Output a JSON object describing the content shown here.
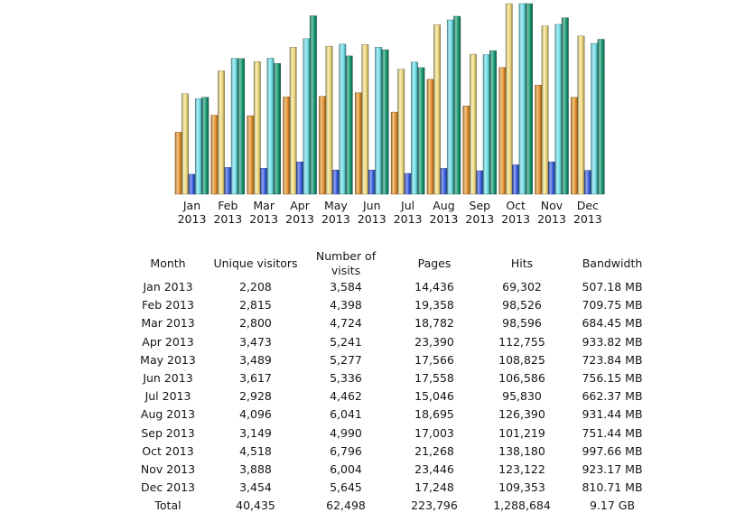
{
  "chart_data": {
    "type": "bar",
    "categories": [
      "Jan 2013",
      "Feb 2013",
      "Mar 2013",
      "Apr 2013",
      "May 2013",
      "Jun 2013",
      "Jul 2013",
      "Aug 2013",
      "Sep 2013",
      "Oct 2013",
      "Nov 2013",
      "Dec 2013"
    ],
    "series": [
      {
        "color": "#e8952e",
        "values": [
          2208,
          2815,
          2800,
          3473,
          3489,
          3617,
          2928,
          4096,
          3149,
          4518,
          3888,
          3454
        ]
      },
      {
        "color": "#f0dc80",
        "values": [
          3584,
          4398,
          4724,
          5241,
          5277,
          5336,
          4462,
          6041,
          4990,
          6796,
          6004,
          5645
        ]
      },
      {
        "color": "#3a5ee0",
        "values": [
          14436,
          19358,
          18782,
          23390,
          17566,
          17558,
          15046,
          18695,
          17003,
          21268,
          23446,
          17248
        ]
      },
      {
        "color": "#70e0e8",
        "values": [
          69302,
          98526,
          98596,
          112755,
          108825,
          106586,
          95830,
          126390,
          101219,
          138180,
          123122,
          109353
        ]
      },
      {
        "color": "#1a9a74",
        "values": [
          507.18,
          709.75,
          684.45,
          933.82,
          723.84,
          756.15,
          662.37,
          931.44,
          751.44,
          997.66,
          923.17,
          810.71
        ]
      }
    ],
    "grid": false,
    "legend": "none"
  },
  "table": {
    "headers": [
      "Month",
      "Unique visitors",
      "Number of visits",
      "Pages",
      "Hits",
      "Bandwidth"
    ],
    "rows": [
      [
        "Jan 2013",
        "2,208",
        "3,584",
        "14,436",
        "69,302",
        "507.18 MB"
      ],
      [
        "Feb 2013",
        "2,815",
        "4,398",
        "19,358",
        "98,526",
        "709.75 MB"
      ],
      [
        "Mar 2013",
        "2,800",
        "4,724",
        "18,782",
        "98,596",
        "684.45 MB"
      ],
      [
        "Apr 2013",
        "3,473",
        "5,241",
        "23,390",
        "112,755",
        "933.82 MB"
      ],
      [
        "May 2013",
        "3,489",
        "5,277",
        "17,566",
        "108,825",
        "723.84 MB"
      ],
      [
        "Jun 2013",
        "3,617",
        "5,336",
        "17,558",
        "106,586",
        "756.15 MB"
      ],
      [
        "Jul 2013",
        "2,928",
        "4,462",
        "15,046",
        "95,830",
        "662.37 MB"
      ],
      [
        "Aug 2013",
        "4,096",
        "6,041",
        "18,695",
        "126,390",
        "931.44 MB"
      ],
      [
        "Sep 2013",
        "3,149",
        "4,990",
        "17,003",
        "101,219",
        "751.44 MB"
      ],
      [
        "Oct 2013",
        "4,518",
        "6,796",
        "21,268",
        "138,180",
        "997.66 MB"
      ],
      [
        "Nov 2013",
        "3,888",
        "6,004",
        "23,446",
        "123,122",
        "923.17 MB"
      ],
      [
        "Dec 2013",
        "3,454",
        "5,645",
        "17,248",
        "109,353",
        "810.71 MB"
      ]
    ],
    "total": [
      "Total",
      "40,435",
      "62,498",
      "223,796",
      "1,288,684",
      "9.17 GB"
    ]
  }
}
